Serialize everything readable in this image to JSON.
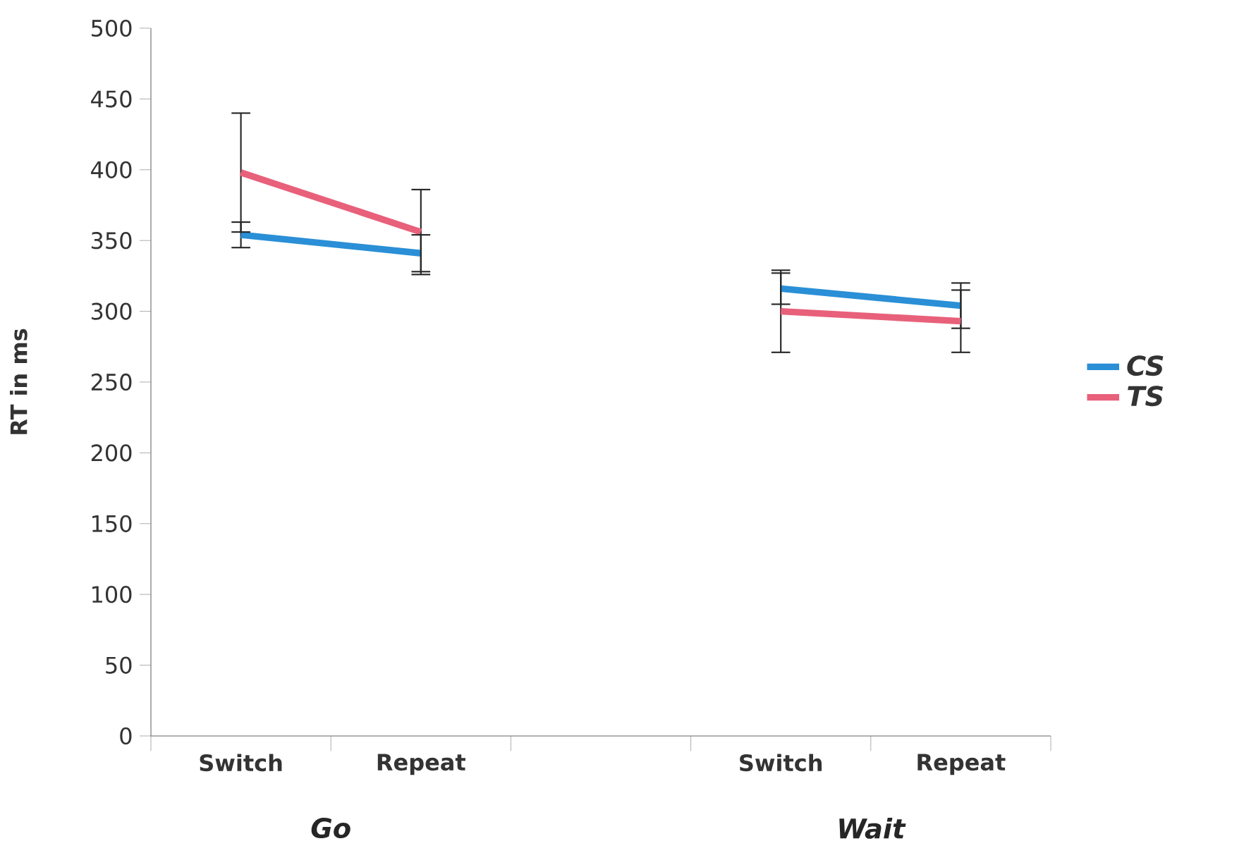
{
  "chart_data": {
    "type": "line",
    "ylabel": "RT in ms",
    "categories": [
      "Switch",
      "Repeat",
      null,
      "Switch",
      "Repeat"
    ],
    "annotations": [
      "Go",
      "Wait"
    ],
    "ylim": [
      0,
      500
    ],
    "yticks": [
      0,
      50,
      100,
      150,
      200,
      250,
      300,
      350,
      400,
      450,
      500
    ],
    "grid": false,
    "legend": "right",
    "marker": "none",
    "line_style": "solid",
    "series": [
      {
        "name": "CS",
        "color": "#2a8fd6",
        "values": [
          354,
          341,
          null,
          316,
          304
        ],
        "errors": [
          9,
          13,
          null,
          11,
          16
        ]
      },
      {
        "name": "TS",
        "color": "#e8607a",
        "values": [
          398,
          356,
          null,
          300,
          293
        ],
        "errors": [
          42,
          30,
          null,
          29,
          22
        ]
      }
    ]
  }
}
